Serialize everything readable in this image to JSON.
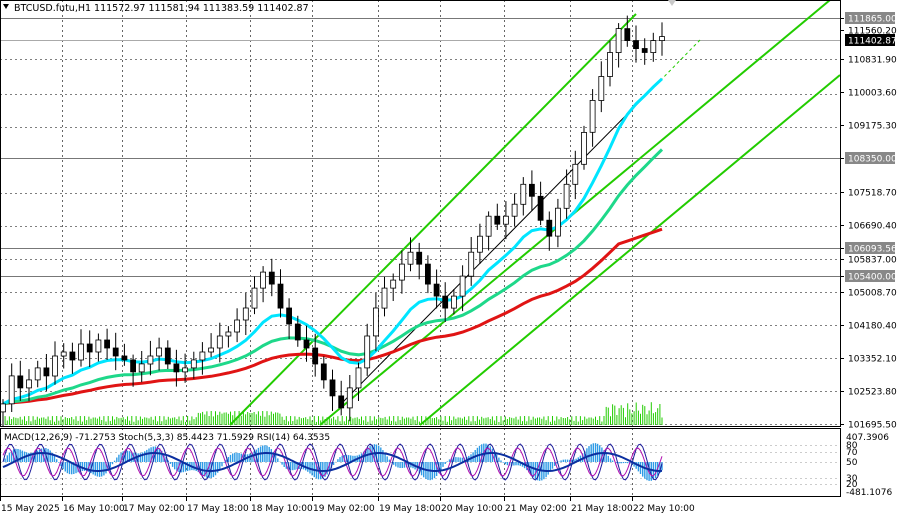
{
  "header": {
    "text": "BTCUSD.futu,H1  111572.97 111581.94 111383.59 111402.87"
  },
  "colors": {
    "background": "#ffffff",
    "grid": "#000000",
    "candle": "#000000",
    "channel": "#22cc00",
    "ema_fast": "#00e5ff",
    "ema_mid": "#1ed88a",
    "ema_slow": "#e01414",
    "macd_hist": "#2e9be6",
    "macd_signal": "#0b2fa0",
    "stoch_main": "#1b1b9c",
    "rsi": "#b00fb0",
    "volume": "#22cc00"
  },
  "price_axis": {
    "labels": [
      "111865.00",
      "111560.20",
      "110831.90",
      "110003.60",
      "109175.30",
      "108350.00",
      "107518.70",
      "106690.40",
      "106093.56",
      "105837.00",
      "105400.00",
      "105008.70",
      "104180.40",
      "103352.10",
      "102523.80",
      "101695.50"
    ],
    "current": "111402.87"
  },
  "indicator": {
    "text": "MACD(12,26,9) -71.2753  Stoch(5,3,3) 85.4423 71.5929  RSI(14) 64.3535",
    "labels": [
      "407.3906",
      "80",
      "70",
      "50",
      "30",
      "20",
      "-481.1076"
    ]
  },
  "time_axis": {
    "labels": [
      "15 May 2025",
      "16 May 10:00",
      "17 May 02:00",
      "17 May 18:00",
      "18 May 10:00",
      "19 May 02:00",
      "19 May 18:00",
      "20 May 10:00",
      "21 May 02:00",
      "21 May 18:00",
      "22 May 10:00"
    ]
  },
  "chart_data": {
    "type": "candlestick",
    "symbol": "BTCUSD.futu",
    "timeframe": "H1",
    "ohlc_current": {
      "open": 111572.97,
      "high": 111581.94,
      "low": 111383.59,
      "close": 111402.87
    },
    "ylim": [
      101500,
      112400
    ],
    "key_levels": [
      111865.0,
      108350.0,
      106093.56,
      105400.0
    ],
    "series_close_approx": [
      102200,
      102900,
      102600,
      102800,
      103100,
      102900,
      103400,
      103500,
      103300,
      103700,
      103500,
      103800,
      103600,
      103400,
      103300,
      103000,
      103200,
      103400,
      103600,
      103200,
      103000,
      103100,
      103300,
      103500,
      103600,
      103900,
      104000,
      104300,
      104600,
      105100,
      105500,
      105200,
      104600,
      104200,
      103800,
      103600,
      103200,
      102800,
      102400,
      102100,
      102600,
      103100,
      103900,
      104600,
      105100,
      105300,
      105700,
      106000,
      105700,
      105200,
      104900,
      104600,
      104900,
      105400,
      106000,
      106400,
      106900,
      106700,
      106900,
      107200,
      107700,
      107400,
      106800,
      106400,
      107100,
      107700,
      108200,
      109000,
      109800,
      110400,
      111000,
      111600,
      111300,
      111100,
      111000,
      111300,
      111400
    ]
  }
}
